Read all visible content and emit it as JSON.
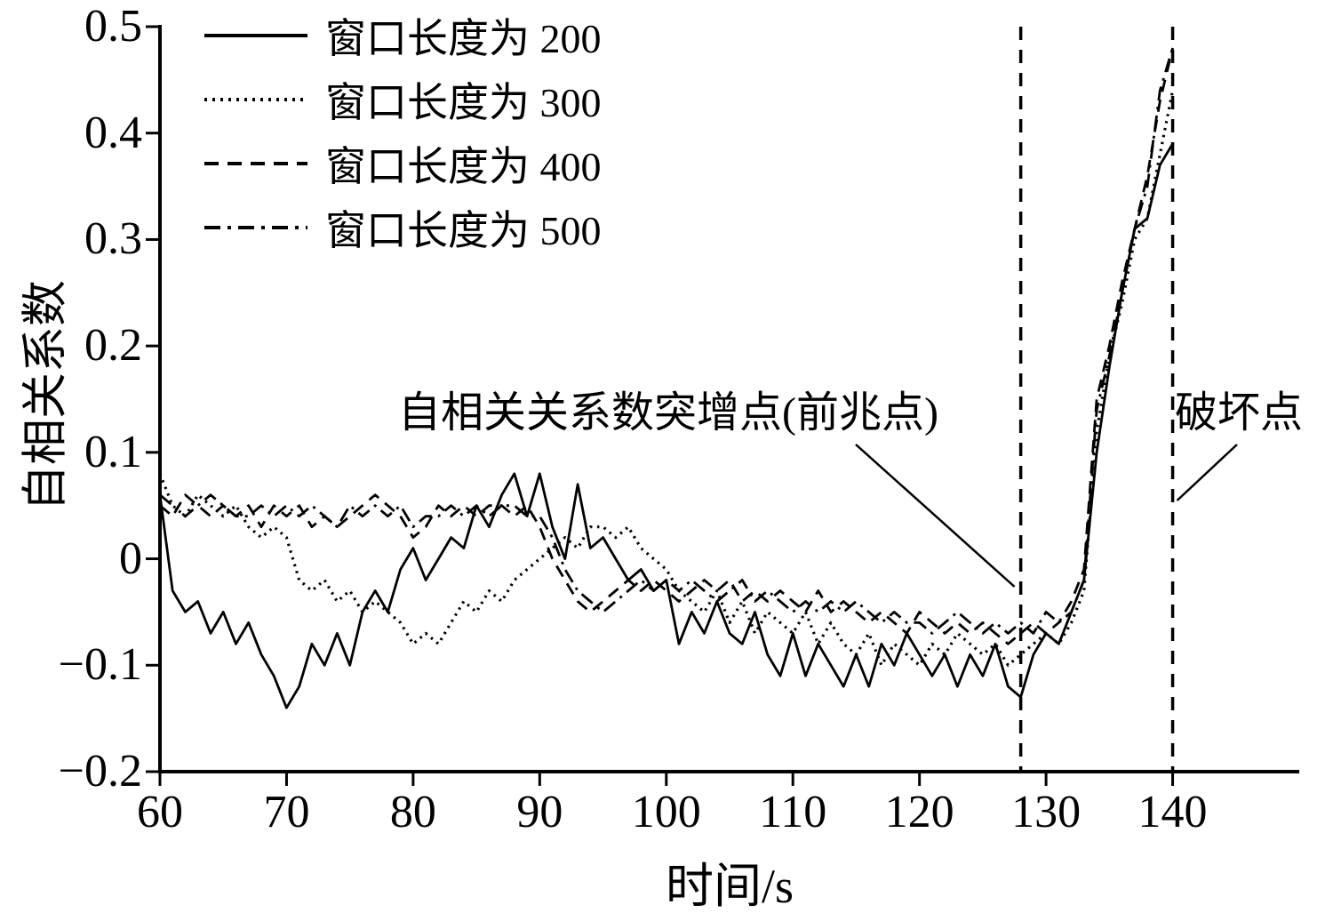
{
  "figure": {
    "background": "#ffffff",
    "ink": "#000000"
  },
  "annotations": {
    "precursor": {
      "text": "自相关关系数突增点(前兆点)",
      "points_to_x": 128
    },
    "failure": {
      "text": "破坏点",
      "points_to_x": 140
    }
  },
  "chart_data": {
    "type": "line",
    "title": "",
    "xlabel": "时间/s",
    "ylabel": "自相关系数",
    "xlim": [
      60,
      150
    ],
    "ylim": [
      -0.2,
      0.5
    ],
    "x_ticks": [
      60,
      70,
      80,
      90,
      100,
      110,
      120,
      130,
      140
    ],
    "x_tick_labels": [
      "60",
      "70",
      "80",
      "90",
      "100",
      "110",
      "120",
      "130",
      "140"
    ],
    "y_ticks": [
      -0.2,
      -0.1,
      0,
      0.1,
      0.2,
      0.3,
      0.4,
      0.5
    ],
    "y_tick_labels": [
      "−0.2",
      "−0.1",
      "0",
      "0.1",
      "0.2",
      "0.3",
      "0.4",
      "0.5"
    ],
    "grid": false,
    "legend_position": "upper-left",
    "line_color": "#000000",
    "x": [
      60,
      61,
      62,
      63,
      64,
      65,
      66,
      67,
      68,
      69,
      70,
      71,
      72,
      73,
      74,
      75,
      76,
      77,
      78,
      79,
      80,
      81,
      82,
      83,
      84,
      85,
      86,
      87,
      88,
      89,
      90,
      91,
      92,
      93,
      94,
      95,
      96,
      97,
      98,
      99,
      100,
      101,
      102,
      103,
      104,
      105,
      106,
      107,
      108,
      109,
      110,
      111,
      112,
      113,
      114,
      115,
      116,
      117,
      118,
      119,
      120,
      121,
      122,
      123,
      124,
      125,
      126,
      127,
      128,
      129,
      130,
      131,
      132,
      133,
      134,
      135,
      136,
      137,
      138,
      139,
      140
    ],
    "series": [
      {
        "name": "窗口长度为 200",
        "style": "solid",
        "values": [
          0.06,
          -0.03,
          -0.05,
          -0.04,
          -0.07,
          -0.05,
          -0.08,
          -0.06,
          -0.09,
          -0.11,
          -0.14,
          -0.12,
          -0.08,
          -0.1,
          -0.07,
          -0.1,
          -0.05,
          -0.03,
          -0.05,
          -0.01,
          0.01,
          -0.02,
          0.0,
          0.02,
          0.01,
          0.05,
          0.03,
          0.06,
          0.08,
          0.04,
          0.08,
          0.03,
          0.0,
          0.07,
          0.01,
          0.02,
          0.0,
          -0.02,
          -0.01,
          -0.03,
          -0.02,
          -0.08,
          -0.05,
          -0.07,
          -0.04,
          -0.07,
          -0.08,
          -0.05,
          -0.09,
          -0.11,
          -0.07,
          -0.11,
          -0.08,
          -0.1,
          -0.12,
          -0.09,
          -0.12,
          -0.08,
          -0.1,
          -0.07,
          -0.09,
          -0.11,
          -0.09,
          -0.12,
          -0.09,
          -0.11,
          -0.08,
          -0.12,
          -0.13,
          -0.09,
          -0.07,
          -0.08,
          -0.05,
          -0.02,
          0.1,
          0.18,
          0.25,
          0.31,
          0.32,
          0.37,
          0.39
        ]
      },
      {
        "name": "窗口长度为 300",
        "style": "dotted",
        "values": [
          0.08,
          0.05,
          0.04,
          0.06,
          0.05,
          0.04,
          0.05,
          0.03,
          0.02,
          0.03,
          0.02,
          -0.02,
          -0.03,
          -0.02,
          -0.04,
          -0.03,
          -0.05,
          -0.04,
          -0.05,
          -0.06,
          -0.08,
          -0.07,
          -0.08,
          -0.06,
          -0.04,
          -0.05,
          -0.03,
          -0.04,
          -0.02,
          -0.01,
          0.0,
          0.01,
          0.02,
          0.01,
          0.03,
          0.03,
          0.02,
          0.03,
          0.01,
          0.0,
          -0.01,
          -0.03,
          -0.04,
          -0.05,
          -0.03,
          -0.06,
          -0.04,
          -0.07,
          -0.05,
          -0.06,
          -0.07,
          -0.05,
          -0.08,
          -0.06,
          -0.08,
          -0.09,
          -0.07,
          -0.1,
          -0.08,
          -0.09,
          -0.1,
          -0.08,
          -0.09,
          -0.07,
          -0.08,
          -0.09,
          -0.08,
          -0.1,
          -0.09,
          -0.08,
          -0.07,
          -0.08,
          -0.06,
          -0.03,
          0.12,
          0.19,
          0.24,
          0.3,
          0.32,
          0.38,
          0.44
        ]
      },
      {
        "name": "窗口长度为 400",
        "style": "dashed",
        "values": [
          0.05,
          0.04,
          0.06,
          0.05,
          0.04,
          0.05,
          0.04,
          0.05,
          0.03,
          0.05,
          0.04,
          0.05,
          0.03,
          0.04,
          0.03,
          0.04,
          0.05,
          0.06,
          0.05,
          0.04,
          0.02,
          0.03,
          0.05,
          0.04,
          0.05,
          0.04,
          0.05,
          0.05,
          0.04,
          0.05,
          0.03,
          0.0,
          -0.02,
          -0.04,
          -0.05,
          -0.04,
          -0.03,
          -0.02,
          -0.03,
          -0.02,
          -0.03,
          -0.04,
          -0.03,
          -0.02,
          -0.03,
          -0.02,
          -0.04,
          -0.03,
          -0.04,
          -0.03,
          -0.04,
          -0.05,
          -0.03,
          -0.05,
          -0.04,
          -0.05,
          -0.06,
          -0.05,
          -0.06,
          -0.07,
          -0.05,
          -0.06,
          -0.07,
          -0.06,
          -0.07,
          -0.06,
          -0.07,
          -0.08,
          -0.07,
          -0.06,
          -0.07,
          -0.06,
          -0.04,
          -0.01,
          0.15,
          0.2,
          0.26,
          0.31,
          0.36,
          0.43,
          0.48
        ]
      },
      {
        "name": "窗口长度为 500",
        "style": "dashdot",
        "values": [
          0.06,
          0.05,
          0.04,
          0.05,
          0.06,
          0.05,
          0.04,
          0.04,
          0.05,
          0.04,
          0.05,
          0.04,
          0.05,
          0.04,
          0.03,
          0.05,
          0.04,
          0.05,
          0.04,
          0.05,
          0.03,
          0.04,
          0.04,
          0.05,
          0.04,
          0.05,
          0.04,
          0.05,
          0.05,
          0.04,
          0.04,
          0.02,
          -0.01,
          -0.03,
          -0.04,
          -0.05,
          -0.04,
          -0.03,
          -0.02,
          -0.03,
          -0.02,
          -0.03,
          -0.02,
          -0.03,
          -0.04,
          -0.03,
          -0.02,
          -0.04,
          -0.03,
          -0.04,
          -0.05,
          -0.04,
          -0.05,
          -0.04,
          -0.05,
          -0.04,
          -0.05,
          -0.06,
          -0.05,
          -0.06,
          -0.06,
          -0.07,
          -0.06,
          -0.05,
          -0.06,
          -0.07,
          -0.06,
          -0.07,
          -0.06,
          -0.07,
          -0.05,
          -0.06,
          -0.05,
          -0.02,
          0.14,
          0.19,
          0.25,
          0.31,
          0.35,
          0.44,
          0.48
        ]
      }
    ],
    "vlines": [
      {
        "x": 128,
        "label": "自相关系数突增点(前兆点)"
      },
      {
        "x": 140,
        "label": "破坏点"
      }
    ]
  }
}
